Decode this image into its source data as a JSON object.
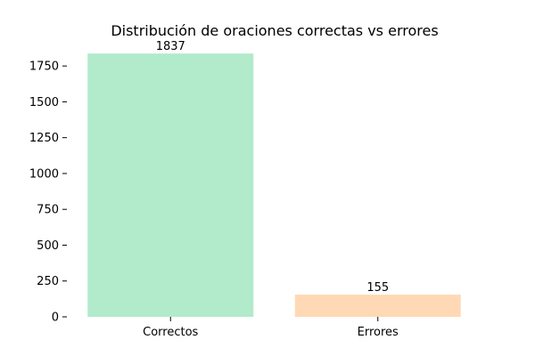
{
  "chart_data": {
    "type": "bar",
    "title": "Distribución de oraciones correctas vs errores",
    "xlabel": "",
    "ylabel": "",
    "categories": [
      "Correctos",
      "Errores"
    ],
    "values": [
      1837,
      155
    ],
    "colors": [
      "#b1ebcb",
      "#ffd9b5"
    ],
    "ylim": [
      0,
      1900
    ],
    "yticks": [
      0,
      250,
      500,
      750,
      1000,
      1250,
      1500,
      1750
    ],
    "grid": false,
    "legend": "none"
  }
}
